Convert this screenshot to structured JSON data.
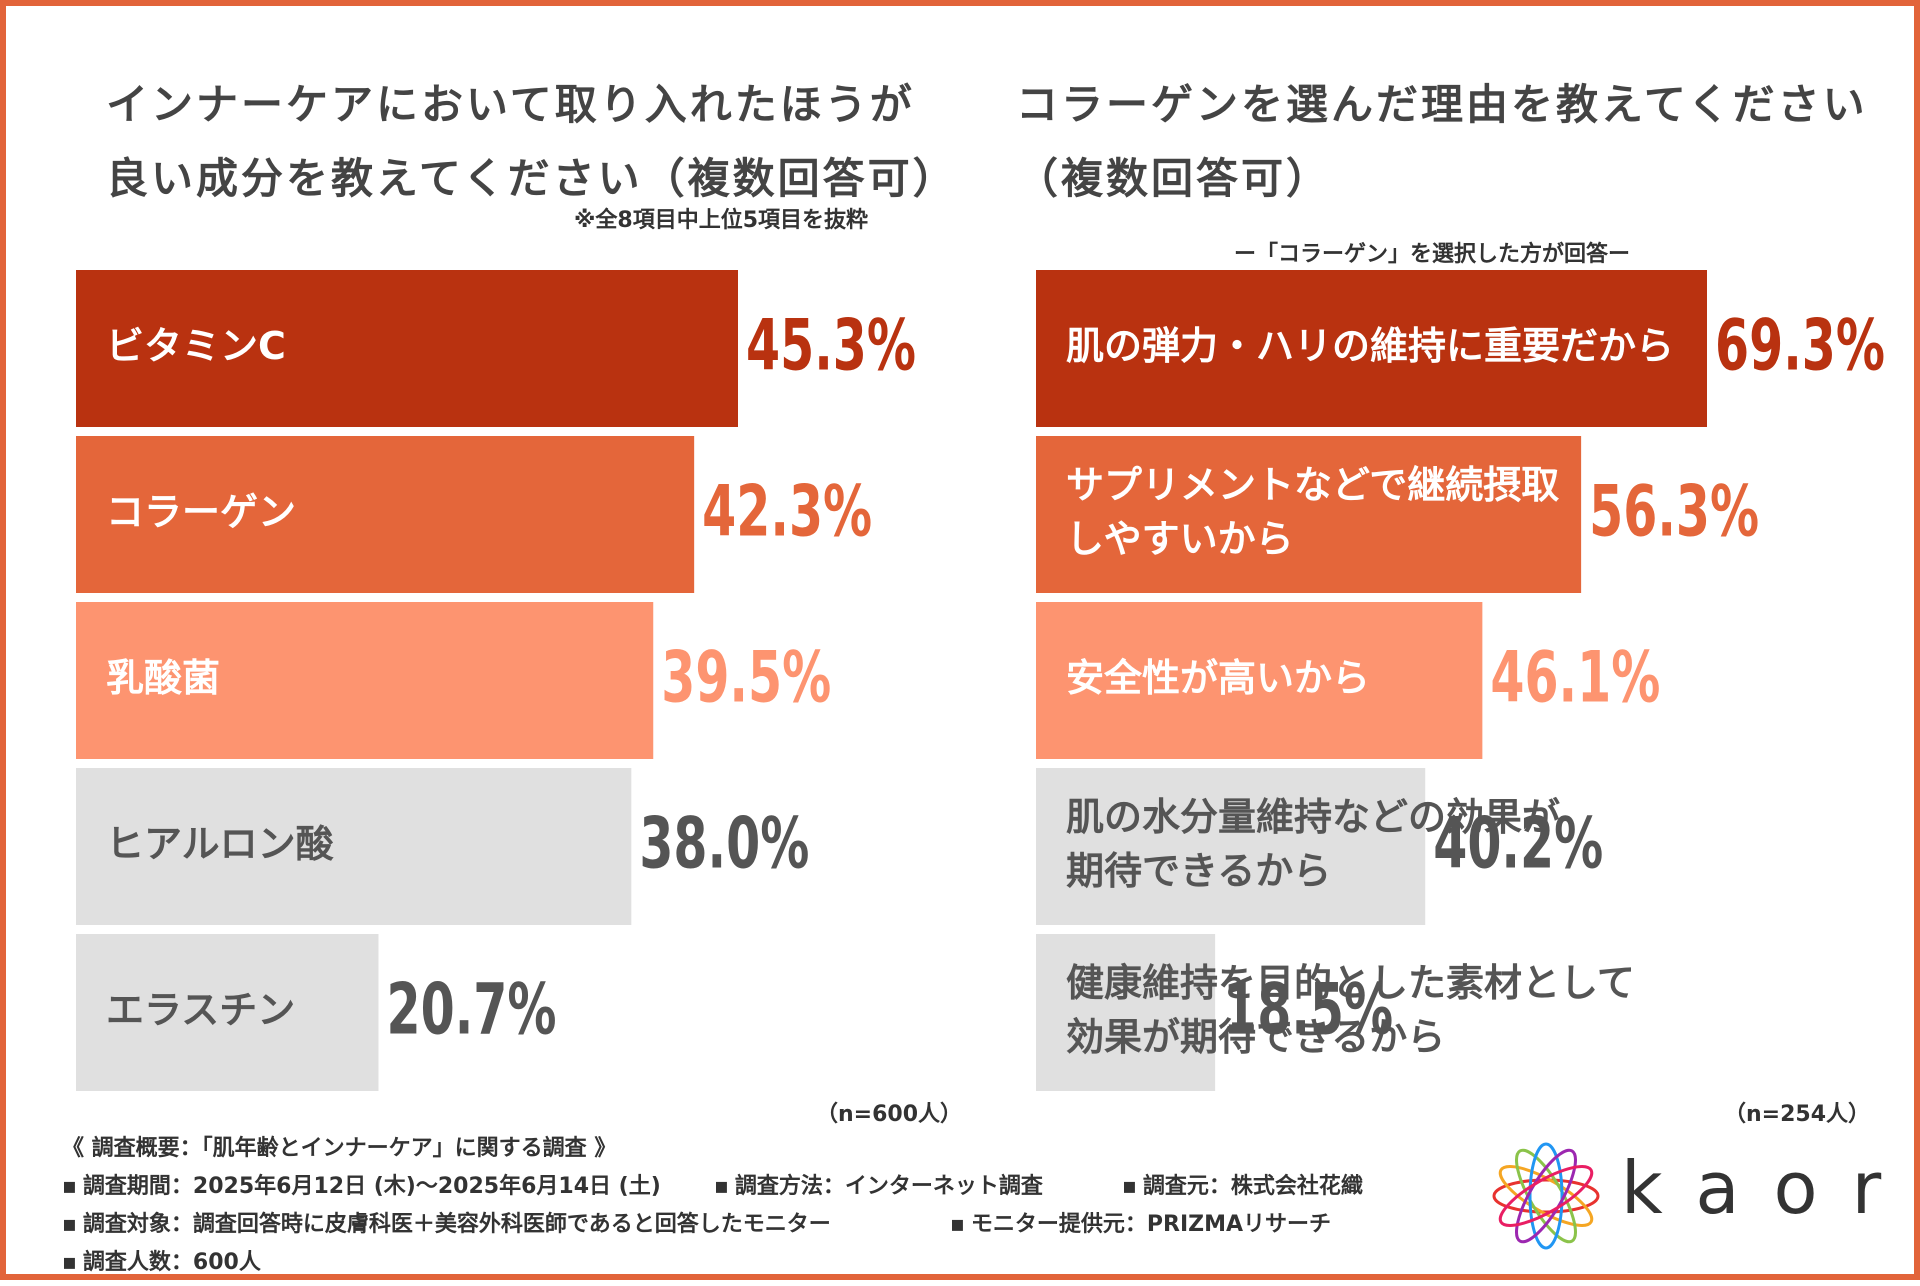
{
  "left": {
    "title_line1": "インナーケアにおいて取り入れたほうが",
    "title_line2": "良い成分を教えてください（複数回答可）",
    "note": "※全8項目中上位5項目を抜粋",
    "sample": "（n=600人）"
  },
  "right": {
    "title_line1": "コラーゲンを選んだ理由を教えてください",
    "title_line2": "（複数回答可）",
    "subtitle": "ー「コラーゲン」を選択した方が回答ー",
    "sample": "（n=254人）"
  },
  "colors": {
    "dark": "#b93210",
    "mid": "#e4663a",
    "light": "#fd9470",
    "gray": "#e0e0e0",
    "gray_text": "#555555",
    "frame": "#e2643a"
  },
  "chart_data": [
    {
      "type": "bar",
      "orientation": "horizontal",
      "title": "インナーケアにおいて取り入れたほうが良い成分を教えてください（複数回答可）",
      "categories": [
        "ビタミンC",
        "コラーゲン",
        "乳酸菌",
        "ヒアルロン酸",
        "エラスチン"
      ],
      "values": [
        45.3,
        42.3,
        39.5,
        38.0,
        20.7
      ],
      "value_labels": [
        "45.3%",
        "42.3%",
        "39.5%",
        "38.0%",
        "20.7%"
      ],
      "unit": "%",
      "xlim": [
        0,
        45.3
      ]
    },
    {
      "type": "bar",
      "orientation": "horizontal",
      "title": "コラーゲンを選んだ理由を教えてください（複数回答可）",
      "categories": [
        "肌の弾力・ハリの維持に重要だから",
        "サプリメントなどで継続摂取しやすいから",
        "安全性が高いから",
        "肌の水分量維持などの効果が期待できるから",
        "健康維持を目的とした素材として効果が期待できるから"
      ],
      "category_lines": [
        [
          "肌の弾力・ハリの維持に重要だから"
        ],
        [
          "サプリメントなどで継続摂取",
          "しやすいから"
        ],
        [
          "安全性が高いから"
        ],
        [
          "肌の水分量維持などの効果が",
          "期待できるから"
        ],
        [
          "健康維持を目的とした素材として",
          "効果が期待できるから"
        ]
      ],
      "values": [
        69.3,
        56.3,
        46.1,
        40.2,
        18.5
      ],
      "value_labels": [
        "69.3%",
        "56.3%",
        "46.1%",
        "40.2%",
        "18.5%"
      ],
      "unit": "%",
      "xlim": [
        0,
        69.3
      ]
    }
  ],
  "footer": {
    "heading": "《 調査概要：「肌年齢とインナーケア」に関する調査 》",
    "period": "調査期間：2025年6月12日 (木)〜2025年6月14日 (土)",
    "method": "調査方法：インターネット調査",
    "org": "調査元：株式会社花織",
    "target": "調査対象：調査回答時に皮膚科医＋美容外科医師であると回答したモニター",
    "provider": "モニター提供元：PRIZMAリサーチ",
    "count": "調査人数：600人"
  },
  "logo": {
    "text": "kaori"
  }
}
